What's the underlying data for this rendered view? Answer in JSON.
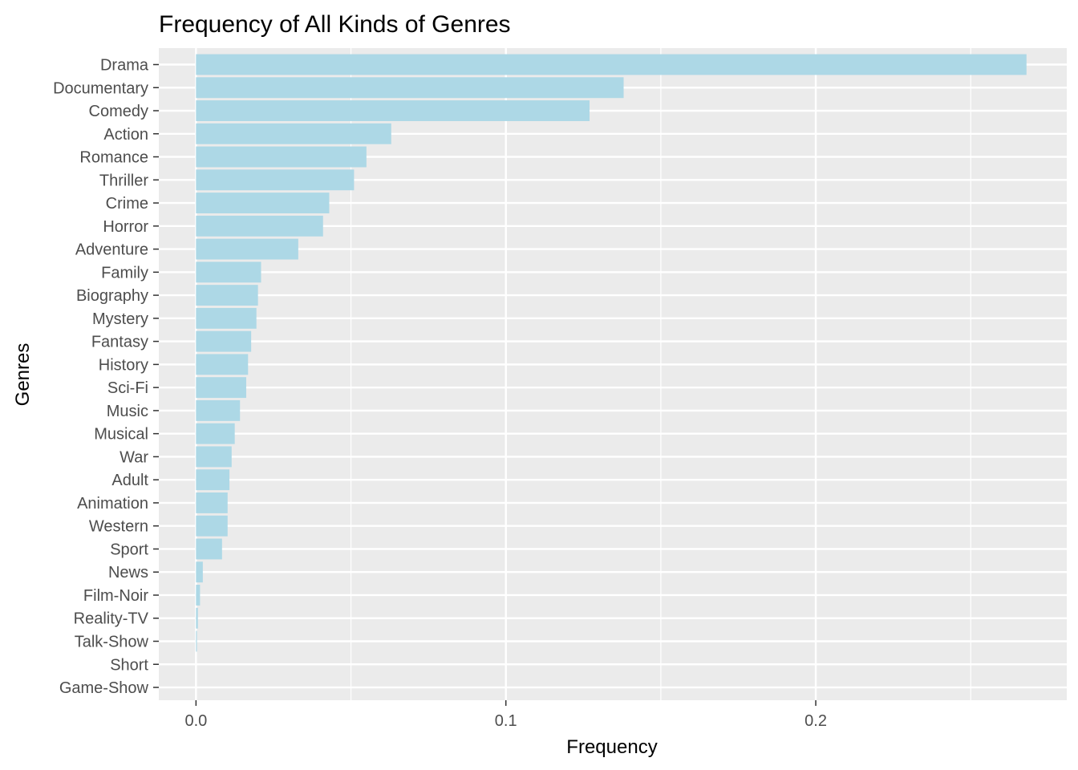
{
  "chart_data": {
    "type": "bar",
    "orientation": "horizontal",
    "title": "Frequency of All Kinds of Genres",
    "xlabel": "Frequency",
    "ylabel": "Genres",
    "xlim": [
      -0.012,
      0.281
    ],
    "xticks": [
      {
        "value": 0.0,
        "label": "0.0"
      },
      {
        "value": 0.1,
        "label": "0.1"
      },
      {
        "value": 0.2,
        "label": "0.2"
      }
    ],
    "categories": [
      "Drama",
      "Documentary",
      "Comedy",
      "Action",
      "Romance",
      "Thriller",
      "Crime",
      "Horror",
      "Adventure",
      "Family",
      "Biography",
      "Mystery",
      "Fantasy",
      "History",
      "Sci-Fi",
      "Music",
      "Musical",
      "War",
      "Adult",
      "Animation",
      "Western",
      "Sport",
      "News",
      "Film-Noir",
      "Reality-TV",
      "Talk-Show",
      "Short",
      "Game-Show"
    ],
    "values": [
      0.268,
      0.138,
      0.127,
      0.063,
      0.055,
      0.051,
      0.043,
      0.041,
      0.033,
      0.021,
      0.02,
      0.0195,
      0.0178,
      0.0168,
      0.0162,
      0.0142,
      0.0125,
      0.0115,
      0.0108,
      0.0102,
      0.0102,
      0.0084,
      0.0022,
      0.0013,
      0.0006,
      0.0003,
      0.0,
      0.0
    ],
    "grid": true,
    "legend": "none",
    "colors": {
      "bar": "#add8e6",
      "panel": "#ebebeb",
      "grid": "#ffffff",
      "tick_text": "#4d4d4d",
      "tick_mark": "#333333"
    }
  }
}
